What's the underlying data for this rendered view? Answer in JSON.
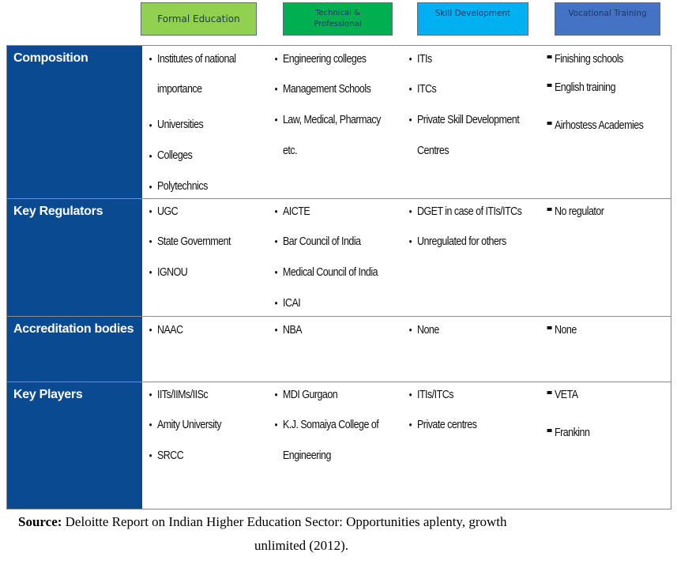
{
  "headers": {
    "formal": "Formal Education",
    "tech_line1": "Technical &",
    "tech_line2": "Professional",
    "skill": "Skill Development",
    "vocational": "Vocational Training"
  },
  "rows": [
    {
      "label": "Composition",
      "formal": [
        "Institutes of national",
        "importance",
        "Universities",
        "Colleges",
        "Polytechnics"
      ],
      "tech": [
        "Engineering colleges",
        "Management Schools",
        "Law, Medical, Pharmacy",
        "etc."
      ],
      "skill": [
        "ITIs",
        "ITCs",
        "Private Skill Development",
        "Centres"
      ],
      "vocational": [
        "Finishing schools",
        "English training",
        "Airhostess Academies"
      ]
    },
    {
      "label": "Key Regulators",
      "formal": [
        "UGC",
        "State Government",
        "IGNOU"
      ],
      "tech": [
        "AICTE",
        "Bar Council of India",
        "Medical Council of India",
        "ICAI"
      ],
      "skill": [
        "DGET in case of ITIs/ITCs",
        "Unregulated for others"
      ],
      "vocational": [
        "No regulator"
      ]
    },
    {
      "label": "Accreditation bodies",
      "formal": [
        "NAAC"
      ],
      "tech": [
        "NBA"
      ],
      "skill": [
        "None"
      ],
      "vocational": [
        "None"
      ]
    },
    {
      "label": "Key Players",
      "formal": [
        "IITs/IIMs/IISc",
        "Amity University",
        "SRCC"
      ],
      "tech": [
        "MDI Gurgaon",
        "K.J. Somaiya College of",
        "Engineering"
      ],
      "skill": [
        "ITIs/ITCs",
        "Private centres"
      ],
      "vocational": [
        "VETA",
        "Frankinn"
      ]
    }
  ],
  "source": {
    "label": "Source:",
    "line1": "Deloitte Report on Indian Higher Education Sector: Opportunities aplenty, growth",
    "line2": "unlimited (2012)."
  }
}
